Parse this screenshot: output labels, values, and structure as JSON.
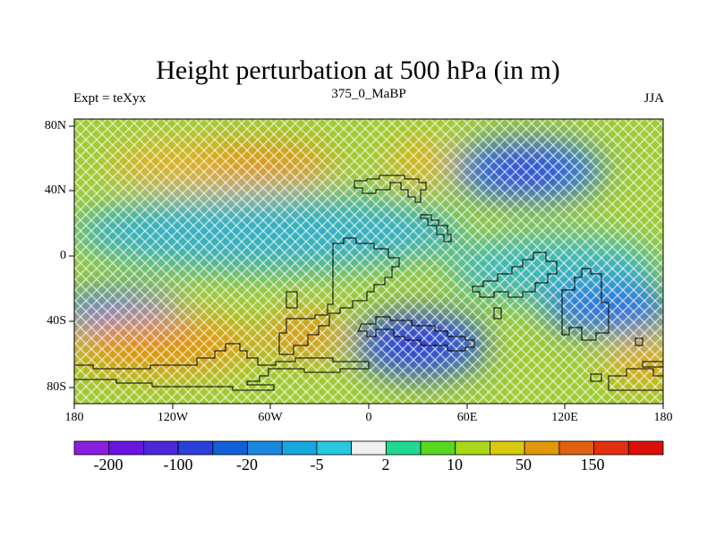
{
  "title": "Height perturbation at 500 hPa (in m)",
  "subtitle_left": "Expt = teXyx",
  "subtitle_center": "375_0_MaBP",
  "subtitle_right": "JJA",
  "lat_ticks": [
    "80N",
    "40N",
    "0",
    "40S",
    "80S"
  ],
  "lon_ticks": [
    "180",
    "120W",
    "60W",
    "0",
    "60E",
    "120E",
    "180"
  ],
  "colorbar": {
    "colors": [
      "#8a1ee0",
      "#6a14e0",
      "#4a28d8",
      "#2a40d8",
      "#1060d8",
      "#1a88e0",
      "#18a8e0",
      "#28c8e0",
      "#f0f0f0",
      "#20d890",
      "#58d820",
      "#a8d818",
      "#d8c810",
      "#e09808",
      "#e06010",
      "#e03010",
      "#d81008"
    ],
    "labels": [
      "-200",
      "-100",
      "-20",
      "-5",
      "2",
      "10",
      "50",
      "150"
    ]
  }
}
